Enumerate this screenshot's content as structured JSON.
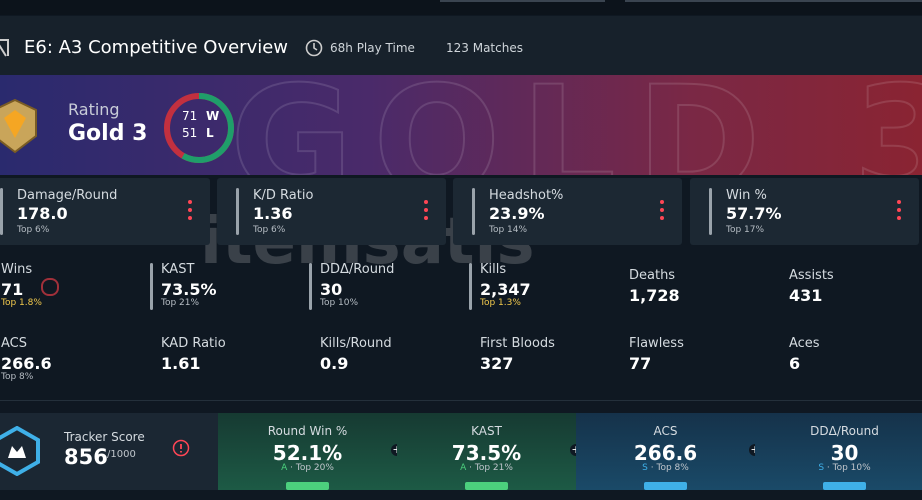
{
  "header": {
    "title": "E6: A3 Competitive Overview",
    "play_time": "68h Play Time",
    "matches": "123 Matches"
  },
  "rating": {
    "label": "Rating",
    "rank": "Gold 3",
    "wins": 71,
    "w": "W",
    "losses": 51,
    "l": "L"
  },
  "watermark": "itemsatis",
  "cards": [
    {
      "label": "Damage/Round",
      "value": "178.0",
      "top": "Top 6%"
    },
    {
      "label": "K/D Ratio",
      "value": "1.36",
      "top": "Top 6%"
    },
    {
      "label": "Headshot%",
      "value": "23.9%",
      "top": "Top 14%"
    },
    {
      "label": "Win %",
      "value": "57.7%",
      "top": "Top 17%"
    }
  ],
  "stats": [
    [
      {
        "label": "Wins",
        "value": "71",
        "top": "Top 1.8%"
      },
      {
        "label": "KAST",
        "value": "73.5%",
        "top": "Top 21%"
      },
      {
        "label": "DDΔ/Round",
        "value": "30",
        "top": "Top 10%"
      },
      {
        "label": "Kills",
        "value": "2,347",
        "top": "Top 1.3%"
      },
      {
        "label": "Deaths",
        "value": "1,728"
      },
      {
        "label": "Assists",
        "value": "431"
      }
    ],
    [
      {
        "label": "ACS",
        "value": "266.6",
        "top": "Top 8%"
      },
      {
        "label": "KAD Ratio",
        "value": "1.61"
      },
      {
        "label": "Kills/Round",
        "value": "0.9"
      },
      {
        "label": "First Bloods",
        "value": "327"
      },
      {
        "label": "Flawless",
        "value": "77"
      },
      {
        "label": "Aces",
        "value": "6"
      }
    ]
  ],
  "tracker": {
    "label": "Tracker Score",
    "score": "856",
    "max": "/1000",
    "items": [
      {
        "label": "Round Win %",
        "value": "52.1%",
        "grade": "A",
        "top": "· Top 20%"
      },
      {
        "label": "KAST",
        "value": "73.5%",
        "grade": "A",
        "top": "· Top 21%"
      },
      {
        "label": "ACS",
        "value": "266.6",
        "grade": "S",
        "top": "· Top 8%"
      },
      {
        "label": "DDΔ/Round",
        "value": "30",
        "grade": "S",
        "top": "· Top 10%"
      }
    ]
  }
}
